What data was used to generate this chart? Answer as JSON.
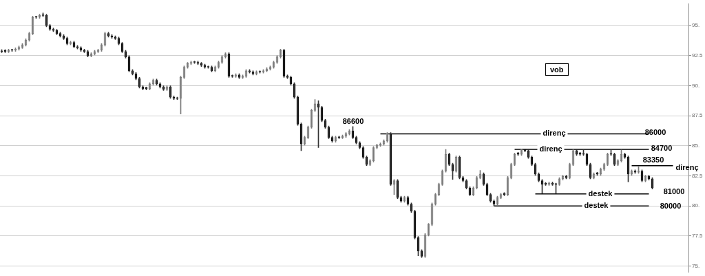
{
  "chart_data": {
    "type": "candlestick",
    "grid": "y",
    "tick_labels": "y",
    "categories": [
      null,
      null,
      null,
      null,
      null,
      null,
      null,
      null,
      null,
      null,
      null,
      null,
      null,
      null,
      null,
      null,
      null,
      null,
      null,
      null,
      null,
      null,
      null,
      null,
      null,
      null,
      null,
      null,
      null,
      null,
      null,
      null,
      null,
      null,
      null,
      null,
      null,
      null,
      null,
      null,
      null,
      null,
      null,
      null,
      null,
      null,
      null,
      null,
      null,
      null,
      null,
      null,
      null,
      null,
      null,
      null,
      null,
      null,
      null,
      null,
      null,
      null,
      null,
      null,
      null,
      null,
      null,
      null,
      null,
      null,
      null,
      null,
      null,
      null,
      null,
      null,
      null,
      null,
      null,
      null,
      null,
      null,
      null,
      null,
      null,
      null,
      null,
      null,
      null,
      null,
      null,
      null,
      null,
      null,
      null,
      null,
      null,
      null,
      null,
      null,
      null,
      null,
      null,
      null,
      null,
      null,
      null,
      null,
      null,
      null,
      null,
      null,
      null,
      null,
      null,
      null,
      null,
      null,
      null,
      null,
      null,
      null,
      null,
      null,
      null,
      null,
      null,
      null,
      null,
      null,
      null,
      null,
      null,
      null,
      null,
      null,
      null,
      null,
      null,
      null,
      null,
      null,
      null,
      null,
      null,
      null,
      null,
      null,
      null,
      null,
      null,
      null,
      null,
      null,
      null,
      null,
      null,
      null,
      null,
      null,
      null,
      null,
      null,
      null,
      null,
      null,
      null,
      null,
      null,
      null,
      null,
      null,
      null,
      null,
      null,
      null,
      null,
      null,
      null,
      null,
      null,
      null,
      null,
      null,
      null,
      null,
      null,
      null,
      null,
      null,
      null,
      null,
      null,
      null,
      null,
      null,
      null,
      null,
      null,
      null
    ],
    "ohlc": [
      [
        92.9,
        93,
        92.75,
        92.85
      ],
      [
        92.95,
        93,
        92.75,
        92.85
      ],
      [
        92.85,
        93.05,
        92.75,
        92.95
      ],
      [
        93,
        93.05,
        92.85,
        92.95
      ],
      [
        92.95,
        93.15,
        92.85,
        93.05
      ],
      [
        93.05,
        93.3,
        92.95,
        93.2
      ],
      [
        93.2,
        93.5,
        93.1,
        93.4
      ],
      [
        93.4,
        93.9,
        93.3,
        93.8
      ],
      [
        93.8,
        94.45,
        93.7,
        94.35
      ],
      [
        94.35,
        95.8,
        94.25,
        95.7
      ],
      [
        95.75,
        95.8,
        95.6,
        95.7
      ],
      [
        95.7,
        95.95,
        95.6,
        95.85
      ],
      [
        95.9,
        96.05,
        95.75,
        95.85
      ],
      [
        95.85,
        95.95,
        94.9,
        95
      ],
      [
        95,
        95.1,
        94.6,
        94.7
      ],
      [
        94.7,
        94.8,
        94.5,
        94.6
      ],
      [
        94.6,
        94.7,
        94.25,
        94.35
      ],
      [
        94.35,
        94.45,
        94.05,
        94.15
      ],
      [
        94.15,
        94.25,
        93.85,
        93.95
      ],
      [
        93.95,
        94.05,
        93.4,
        93.5
      ],
      [
        93.5,
        93.7,
        93.4,
        93.6
      ],
      [
        93.6,
        93.7,
        93.15,
        93.25
      ],
      [
        93.25,
        93.35,
        93.05,
        93.15
      ],
      [
        93.15,
        93.25,
        92.85,
        92.95
      ],
      [
        92.95,
        93.05,
        92.75,
        92.85
      ],
      [
        92.85,
        92.95,
        92.4,
        92.5
      ],
      [
        92.5,
        92.75,
        92.4,
        92.65
      ],
      [
        92.65,
        92.95,
        92.55,
        92.85
      ],
      [
        92.85,
        93.05,
        92.75,
        92.95
      ],
      [
        92.95,
        93.5,
        92.85,
        93.4
      ],
      [
        93.4,
        94.45,
        93.3,
        94.35
      ],
      [
        94.35,
        94.45,
        94.05,
        94.15
      ],
      [
        94.15,
        94.25,
        93.95,
        94.05
      ],
      [
        94.05,
        94.15,
        93.85,
        93.95
      ],
      [
        93.95,
        94.05,
        93.4,
        93.5
      ],
      [
        93.5,
        93.6,
        92.75,
        92.85
      ],
      [
        92.85,
        92.95,
        92.3,
        92.4
      ],
      [
        92.4,
        92.5,
        91.15,
        91.25
      ],
      [
        91.25,
        91.35,
        90.9,
        91
      ],
      [
        91,
        91.1,
        90.5,
        90.6
      ],
      [
        90.6,
        90.7,
        89.8,
        89.9
      ],
      [
        89.9,
        90,
        89.65,
        89.75
      ],
      [
        89.85,
        89.9,
        89.65,
        89.75
      ],
      [
        89.75,
        90.25,
        89.65,
        90.15
      ],
      [
        90.15,
        90.55,
        90.05,
        90.45
      ],
      [
        90.45,
        90.55,
        90.05,
        90.15
      ],
      [
        90.15,
        90.25,
        89.8,
        89.9
      ],
      [
        89.9,
        90,
        89.6,
        89.7
      ],
      [
        89.7,
        90,
        89.6,
        89.9
      ],
      [
        89.9,
        90,
        88.95,
        89.05
      ],
      [
        89.05,
        89.15,
        88.85,
        88.95
      ],
      [
        89,
        89.05,
        88.85,
        88.95
      ],
      [
        88.95,
        90.8,
        87.65,
        90.7
      ],
      [
        90.7,
        91.65,
        90.6,
        91.55
      ],
      [
        91.55,
        91.95,
        91.45,
        91.85
      ],
      [
        91.85,
        92.05,
        91.75,
        91.95
      ],
      [
        92,
        92.05,
        91.85,
        91.95
      ],
      [
        91.95,
        92.05,
        91.75,
        91.85
      ],
      [
        91.85,
        91.95,
        91.6,
        91.7
      ],
      [
        91.7,
        91.8,
        91.45,
        91.55
      ],
      [
        91.6,
        91.65,
        91.45,
        91.55
      ],
      [
        91.55,
        91.65,
        91.15,
        91.25
      ],
      [
        91.25,
        91.65,
        91.15,
        91.55
      ],
      [
        91.55,
        92.05,
        91.45,
        91.95
      ],
      [
        91.95,
        92.5,
        91.85,
        92.4
      ],
      [
        92.4,
        92.75,
        92.3,
        92.65
      ],
      [
        92.65,
        92.75,
        90.7,
        90.8
      ],
      [
        90.85,
        90.9,
        90.7,
        90.8
      ],
      [
        90.8,
        91,
        90.7,
        90.9
      ],
      [
        90.9,
        91,
        90.6,
        90.7
      ],
      [
        90.7,
        90.9,
        90.6,
        90.8
      ],
      [
        90.8,
        91.35,
        90.7,
        91.25
      ],
      [
        91.25,
        91.35,
        91.05,
        91.15
      ],
      [
        91.15,
        91.25,
        90.9,
        91
      ],
      [
        91,
        91.25,
        90.9,
        91.15
      ],
      [
        91.2,
        91.25,
        91.05,
        91.15
      ],
      [
        91.15,
        91.35,
        91.05,
        91.25
      ],
      [
        91.25,
        91.5,
        91.15,
        91.4
      ],
      [
        91.4,
        91.65,
        91.3,
        91.55
      ],
      [
        91.55,
        92.05,
        91.45,
        91.95
      ],
      [
        91.95,
        92.5,
        91.85,
        92.4
      ],
      [
        92.4,
        93.05,
        92.3,
        92.95
      ],
      [
        92.95,
        93.05,
        90.7,
        90.8
      ],
      [
        90.8,
        90.9,
        90.6,
        90.7
      ],
      [
        90.7,
        90.8,
        90.05,
        90.15
      ],
      [
        90.15,
        90.25,
        88.95,
        89.05
      ],
      [
        89.05,
        89.15,
        86.7,
        86.8
      ],
      [
        86.8,
        86.9,
        84.6,
        85.15
      ],
      [
        85.15,
        85.8,
        85.05,
        85.7
      ],
      [
        85.7,
        86.65,
        85.6,
        86.55
      ],
      [
        86.55,
        88.05,
        86.45,
        87.95
      ],
      [
        87.95,
        88.85,
        87.85,
        88.5
      ],
      [
        88.5,
        88.75,
        84.85,
        88.2
      ],
      [
        88.2,
        88.3,
        87,
        87.1
      ],
      [
        87.1,
        87.2,
        86.45,
        86.55
      ],
      [
        86.55,
        86.65,
        85.6,
        85.7
      ],
      [
        85.7,
        85.8,
        85.3,
        85.4
      ],
      [
        85.4,
        85.8,
        85.3,
        85.7
      ],
      [
        85.75,
        85.8,
        85.6,
        85.7
      ],
      [
        85.7,
        85.9,
        85.6,
        85.8
      ],
      [
        85.8,
        86.1,
        85.7,
        86
      ],
      [
        86,
        86.35,
        85.9,
        86.25
      ],
      [
        86.25,
        86.6,
        85.6,
        85.7
      ],
      [
        85.7,
        85.8,
        85.15,
        85.25
      ],
      [
        85.25,
        85.35,
        84.75,
        84.85
      ],
      [
        84.85,
        84.95,
        83.95,
        84.05
      ],
      [
        84.05,
        84.15,
        83.35,
        83.45
      ],
      [
        83.45,
        83.85,
        83.35,
        83.75
      ],
      [
        83.75,
        84.95,
        83.65,
        84.85
      ],
      [
        84.85,
        85.15,
        84.75,
        85.05
      ],
      [
        85.05,
        85.25,
        84.95,
        85.15
      ],
      [
        85.15,
        85.5,
        85.05,
        85.4
      ],
      [
        85.4,
        86.1,
        85.3,
        86
      ],
      [
        86,
        86.1,
        81.7,
        81.8
      ],
      [
        81.8,
        82.2,
        80.95,
        82.1
      ],
      [
        82.1,
        82.2,
        80.6,
        80.7
      ],
      [
        80.7,
        80.8,
        80.3,
        80.4
      ],
      [
        80.4,
        80.8,
        80.3,
        80.7
      ],
      [
        80.7,
        80.8,
        80.05,
        80.15
      ],
      [
        80.15,
        80.25,
        79.45,
        79.55
      ],
      [
        79.55,
        79.65,
        77.25,
        77.35
      ],
      [
        77.35,
        77.45,
        75.85,
        76.25
      ],
      [
        76.25,
        76.35,
        75.7,
        75.8
      ],
      [
        75.8,
        77.7,
        75.7,
        77.6
      ],
      [
        77.6,
        78.55,
        77.5,
        78.45
      ],
      [
        78.45,
        80.25,
        78.35,
        80.15
      ],
      [
        80.15,
        81.05,
        80.05,
        80.95
      ],
      [
        80.95,
        81.9,
        80.85,
        81.8
      ],
      [
        81.8,
        83,
        81.7,
        82.9
      ],
      [
        82.9,
        84.7,
        82.8,
        84.3
      ],
      [
        84.3,
        84.4,
        83.35,
        83.45
      ],
      [
        83.45,
        83.55,
        82.2,
        82.9
      ],
      [
        82.9,
        84.15,
        82.8,
        84.05
      ],
      [
        84.05,
        84.15,
        82.25,
        82.35
      ],
      [
        82.35,
        82.45,
        82,
        82.1
      ],
      [
        82.1,
        82.2,
        81.4,
        81.5
      ],
      [
        81.5,
        81.6,
        80.85,
        80.95
      ],
      [
        80.95,
        81.6,
        80.85,
        81.5
      ],
      [
        81.5,
        82.45,
        81.4,
        82.35
      ],
      [
        82.35,
        82.95,
        82.25,
        82.65
      ],
      [
        82.65,
        82.75,
        81.7,
        81.8
      ],
      [
        81.8,
        81.9,
        80.85,
        80.95
      ],
      [
        80.95,
        81.05,
        80.3,
        80.4
      ],
      [
        80.4,
        80.5,
        80,
        80.15
      ],
      [
        80.15,
        80.8,
        80.05,
        80.7
      ],
      [
        80.7,
        81.05,
        80.6,
        80.95
      ],
      [
        81.05,
        81.1,
        80.85,
        80.95
      ],
      [
        80.95,
        82.45,
        80.85,
        82.35
      ],
      [
        82.35,
        83.55,
        82.25,
        83.45
      ],
      [
        83.45,
        84.4,
        83.35,
        84.3
      ],
      [
        84.4,
        84.45,
        84.2,
        84.3
      ],
      [
        84.3,
        84.75,
        84.2,
        84.7
      ],
      [
        84.7,
        84.75,
        84.5,
        84.6
      ],
      [
        84.6,
        84.7,
        83.95,
        84.05
      ],
      [
        84.05,
        84.15,
        83.35,
        83.45
      ],
      [
        83.45,
        83.55,
        82.55,
        82.65
      ],
      [
        82.65,
        82.75,
        82,
        82.1
      ],
      [
        82.1,
        82.2,
        81.05,
        81.8
      ],
      [
        81.9,
        81.95,
        81.7,
        81.8
      ],
      [
        81.8,
        82,
        81.7,
        81.9
      ],
      [
        81.9,
        82,
        81.7,
        81.8
      ],
      [
        81.85,
        81.9,
        81.05,
        81.8
      ],
      [
        81.8,
        82.35,
        81.7,
        82.25
      ],
      [
        82.25,
        82.55,
        82.15,
        82.45
      ],
      [
        82.45,
        82.55,
        82.25,
        82.35
      ],
      [
        82.35,
        83.55,
        82.25,
        83.45
      ],
      [
        83.45,
        84.7,
        83.35,
        84.6
      ],
      [
        84.6,
        84.7,
        84.2,
        84.3
      ],
      [
        84.4,
        84.45,
        84.2,
        84.3
      ],
      [
        84.35,
        84.65,
        84.2,
        84.3
      ],
      [
        84.3,
        84.4,
        83.35,
        83.45
      ],
      [
        83.45,
        83.55,
        82.25,
        82.35
      ],
      [
        82.35,
        82.75,
        82.25,
        82.65
      ],
      [
        82.75,
        82.8,
        82.55,
        82.65
      ],
      [
        82.65,
        83.15,
        82.55,
        83.05
      ],
      [
        83.05,
        83.55,
        82.95,
        83.45
      ],
      [
        83.45,
        84.4,
        83.35,
        84.3
      ],
      [
        84.35,
        84.65,
        84.2,
        84.3
      ],
      [
        84.3,
        84.4,
        83.35,
        83.45
      ],
      [
        83.45,
        83.85,
        83.35,
        83.75
      ],
      [
        83.75,
        84.65,
        83.65,
        84.3
      ],
      [
        84.3,
        84.4,
        83.95,
        84.05
      ],
      [
        84.05,
        84.15,
        82,
        82.65
      ],
      [
        82.65,
        83,
        82.55,
        82.9
      ],
      [
        82.9,
        83,
        82.7,
        82.8
      ],
      [
        82.8,
        83.3,
        82.7,
        82.9
      ],
      [
        82.9,
        83,
        82,
        82.1
      ],
      [
        82.1,
        82.55,
        82,
        82.45
      ],
      [
        82.45,
        82.55,
        82.15,
        82.25
      ],
      [
        82.25,
        82.35,
        81.4,
        81.5
      ],
      null,
      null,
      null,
      null,
      null,
      null,
      null,
      null,
      null,
      null
    ],
    "ylim": [
      74.5,
      96.8
    ],
    "yticks": [
      {
        "value": 75,
        "label": "75."
      },
      {
        "value": 77.5,
        "label": "77.5"
      },
      {
        "value": 80,
        "label": "80."
      },
      {
        "value": 82.5,
        "label": "82.5"
      },
      {
        "value": 85,
        "label": "85."
      },
      {
        "value": 87.5,
        "label": "87.5"
      },
      {
        "value": 90,
        "label": "90."
      },
      {
        "value": 92.5,
        "label": "92.5"
      },
      {
        "value": 95,
        "label": "95."
      }
    ],
    "series": [
      {
        "type": "line",
        "name": "direnç",
        "color": "#000000",
        "values": [
          null,
          null,
          null,
          null,
          null,
          null,
          null,
          null,
          null,
          null,
          null,
          null,
          null,
          null,
          null,
          null,
          null,
          null,
          null,
          null,
          null,
          null,
          null,
          null,
          null,
          null,
          null,
          null,
          null,
          null,
          null,
          null,
          null,
          null,
          null,
          null,
          null,
          null,
          null,
          null,
          null,
          null,
          null,
          null,
          null,
          null,
          null,
          null,
          null,
          null,
          null,
          null,
          null,
          null,
          null,
          null,
          null,
          null,
          null,
          null,
          null,
          null,
          null,
          null,
          null,
          null,
          null,
          null,
          null,
          null,
          null,
          null,
          null,
          null,
          null,
          null,
          null,
          null,
          null,
          null,
          null,
          null,
          null,
          null,
          null,
          null,
          null,
          null,
          null,
          null,
          null,
          null,
          null,
          null,
          null,
          null,
          null,
          null,
          null,
          null,
          null,
          null,
          null,
          null,
          null,
          null,
          null,
          null,
          null,
          null,
          86,
          null,
          null,
          null,
          null,
          null,
          null,
          null,
          null,
          null,
          null,
          null,
          null,
          null,
          null,
          null,
          null,
          null,
          null,
          null,
          null,
          null,
          null,
          null,
          null,
          null,
          null,
          null,
          null,
          null,
          null,
          null,
          null,
          null,
          null,
          null,
          null,
          null,
          null,
          null,
          null,
          null,
          null,
          null,
          null,
          null,
          null,
          null,
          null,
          null,
          null,
          null,
          null,
          null,
          null,
          null,
          null,
          null,
          null,
          null,
          null,
          null,
          null,
          null,
          null,
          null,
          null,
          null,
          null,
          null,
          null,
          null,
          null,
          null,
          null,
          null,
          null,
          null,
          86,
          null,
          null,
          null,
          null,
          null,
          null,
          null,
          null,
          null,
          null,
          null
        ]
      },
      {
        "type": "line",
        "name": "direnç",
        "color": "#000000",
        "values": [
          null,
          null,
          null,
          null,
          null,
          null,
          null,
          null,
          null,
          null,
          null,
          null,
          null,
          null,
          null,
          null,
          null,
          null,
          null,
          null,
          null,
          null,
          null,
          null,
          null,
          null,
          null,
          null,
          null,
          null,
          null,
          null,
          null,
          null,
          null,
          null,
          null,
          null,
          null,
          null,
          null,
          null,
          null,
          null,
          null,
          null,
          null,
          null,
          null,
          null,
          null,
          null,
          null,
          null,
          null,
          null,
          null,
          null,
          null,
          null,
          null,
          null,
          null,
          null,
          null,
          null,
          null,
          null,
          null,
          null,
          null,
          null,
          null,
          null,
          null,
          null,
          null,
          null,
          null,
          null,
          null,
          null,
          null,
          null,
          null,
          null,
          null,
          null,
          null,
          null,
          null,
          null,
          null,
          null,
          null,
          null,
          null,
          null,
          null,
          null,
          null,
          null,
          null,
          null,
          null,
          null,
          null,
          null,
          null,
          null,
          null,
          null,
          null,
          null,
          null,
          null,
          null,
          null,
          null,
          null,
          null,
          null,
          null,
          null,
          null,
          null,
          null,
          null,
          null,
          null,
          null,
          null,
          null,
          null,
          null,
          null,
          null,
          null,
          null,
          null,
          null,
          null,
          null,
          null,
          null,
          null,
          null,
          null,
          null,
          84.7,
          null,
          null,
          null,
          null,
          null,
          null,
          null,
          null,
          null,
          null,
          null,
          null,
          null,
          null,
          null,
          null,
          null,
          null,
          null,
          null,
          null,
          null,
          null,
          null,
          null,
          null,
          null,
          null,
          null,
          null,
          null,
          null,
          null,
          null,
          null,
          null,
          null,
          null,
          84.7,
          null,
          null,
          null,
          null,
          null,
          null,
          null,
          null,
          null,
          null,
          null
        ]
      },
      {
        "type": "line",
        "name": "direnç",
        "color": "#000000",
        "values": [
          null,
          null,
          null,
          null,
          null,
          null,
          null,
          null,
          null,
          null,
          null,
          null,
          null,
          null,
          null,
          null,
          null,
          null,
          null,
          null,
          null,
          null,
          null,
          null,
          null,
          null,
          null,
          null,
          null,
          null,
          null,
          null,
          null,
          null,
          null,
          null,
          null,
          null,
          null,
          null,
          null,
          null,
          null,
          null,
          null,
          null,
          null,
          null,
          null,
          null,
          null,
          null,
          null,
          null,
          null,
          null,
          null,
          null,
          null,
          null,
          null,
          null,
          null,
          null,
          null,
          null,
          null,
          null,
          null,
          null,
          null,
          null,
          null,
          null,
          null,
          null,
          null,
          null,
          null,
          null,
          null,
          null,
          null,
          null,
          null,
          null,
          null,
          null,
          null,
          null,
          null,
          null,
          null,
          null,
          null,
          null,
          null,
          null,
          null,
          null,
          null,
          null,
          null,
          null,
          null,
          null,
          null,
          null,
          null,
          null,
          null,
          null,
          null,
          null,
          null,
          null,
          null,
          null,
          null,
          null,
          null,
          null,
          null,
          null,
          null,
          null,
          null,
          null,
          null,
          null,
          null,
          null,
          null,
          null,
          null,
          null,
          null,
          null,
          null,
          null,
          null,
          null,
          null,
          null,
          null,
          null,
          null,
          null,
          null,
          null,
          null,
          null,
          null,
          null,
          null,
          null,
          null,
          null,
          null,
          null,
          null,
          null,
          null,
          null,
          null,
          null,
          null,
          null,
          null,
          null,
          null,
          null,
          null,
          null,
          null,
          null,
          null,
          null,
          null,
          null,
          null,
          null,
          null,
          83.35,
          null,
          null,
          null,
          null,
          null,
          null,
          null,
          null,
          null,
          null,
          null,
          83.35,
          null,
          null,
          null,
          null
        ]
      },
      {
        "type": "line",
        "name": "destek",
        "color": "#000000",
        "values": [
          null,
          null,
          null,
          null,
          null,
          null,
          null,
          null,
          null,
          null,
          null,
          null,
          null,
          null,
          null,
          null,
          null,
          null,
          null,
          null,
          null,
          null,
          null,
          null,
          null,
          null,
          null,
          null,
          null,
          null,
          null,
          null,
          null,
          null,
          null,
          null,
          null,
          null,
          null,
          null,
          null,
          null,
          null,
          null,
          null,
          null,
          null,
          null,
          null,
          null,
          null,
          null,
          null,
          null,
          null,
          null,
          null,
          null,
          null,
          null,
          null,
          null,
          null,
          null,
          null,
          null,
          null,
          null,
          null,
          null,
          null,
          null,
          null,
          null,
          null,
          null,
          null,
          null,
          null,
          null,
          null,
          null,
          null,
          null,
          null,
          null,
          null,
          null,
          null,
          null,
          null,
          null,
          null,
          null,
          null,
          null,
          null,
          null,
          null,
          null,
          null,
          null,
          null,
          null,
          null,
          null,
          null,
          null,
          null,
          null,
          null,
          null,
          null,
          null,
          null,
          null,
          null,
          null,
          null,
          null,
          null,
          null,
          null,
          null,
          null,
          null,
          null,
          null,
          null,
          null,
          null,
          null,
          null,
          null,
          null,
          null,
          null,
          null,
          null,
          null,
          null,
          null,
          null,
          null,
          null,
          null,
          null,
          null,
          null,
          null,
          null,
          null,
          null,
          null,
          null,
          81,
          null,
          null,
          null,
          null,
          null,
          null,
          null,
          null,
          null,
          null,
          null,
          null,
          null,
          null,
          null,
          null,
          null,
          null,
          null,
          null,
          null,
          null,
          null,
          null,
          null,
          null,
          null,
          null,
          null,
          null,
          null,
          null,
          81,
          null,
          null,
          null,
          null,
          null,
          null,
          null,
          null,
          null,
          null,
          null
        ]
      },
      {
        "type": "line",
        "name": "destek",
        "color": "#000000",
        "values": [
          null,
          null,
          null,
          null,
          null,
          null,
          null,
          null,
          null,
          null,
          null,
          null,
          null,
          null,
          null,
          null,
          null,
          null,
          null,
          null,
          null,
          null,
          null,
          null,
          null,
          null,
          null,
          null,
          null,
          null,
          null,
          null,
          null,
          null,
          null,
          null,
          null,
          null,
          null,
          null,
          null,
          null,
          null,
          null,
          null,
          null,
          null,
          null,
          null,
          null,
          null,
          null,
          null,
          null,
          null,
          null,
          null,
          null,
          null,
          null,
          null,
          null,
          null,
          null,
          null,
          null,
          null,
          null,
          null,
          null,
          null,
          null,
          null,
          null,
          null,
          null,
          null,
          null,
          null,
          null,
          null,
          null,
          null,
          null,
          null,
          null,
          null,
          null,
          null,
          null,
          null,
          null,
          null,
          null,
          null,
          null,
          null,
          null,
          null,
          null,
          null,
          null,
          null,
          null,
          null,
          null,
          null,
          null,
          null,
          null,
          null,
          null,
          null,
          null,
          null,
          null,
          null,
          null,
          null,
          null,
          null,
          null,
          null,
          null,
          null,
          null,
          null,
          null,
          null,
          null,
          null,
          null,
          null,
          null,
          null,
          null,
          null,
          null,
          null,
          null,
          null,
          null,
          null,
          80,
          null,
          null,
          null,
          null,
          null,
          null,
          null,
          null,
          null,
          null,
          null,
          null,
          null,
          null,
          null,
          null,
          null,
          null,
          null,
          null,
          null,
          null,
          null,
          null,
          null,
          null,
          null,
          null,
          null,
          null,
          null,
          null,
          null,
          null,
          null,
          null,
          null,
          null,
          null,
          null,
          null,
          null,
          null,
          null,
          80,
          null,
          null,
          null,
          null,
          null,
          null,
          null,
          null,
          null,
          null,
          null
        ]
      }
    ],
    "annotations": [
      "86600",
      "86000",
      "84700",
      "83350",
      "81000",
      "80000",
      "vob"
    ]
  }
}
